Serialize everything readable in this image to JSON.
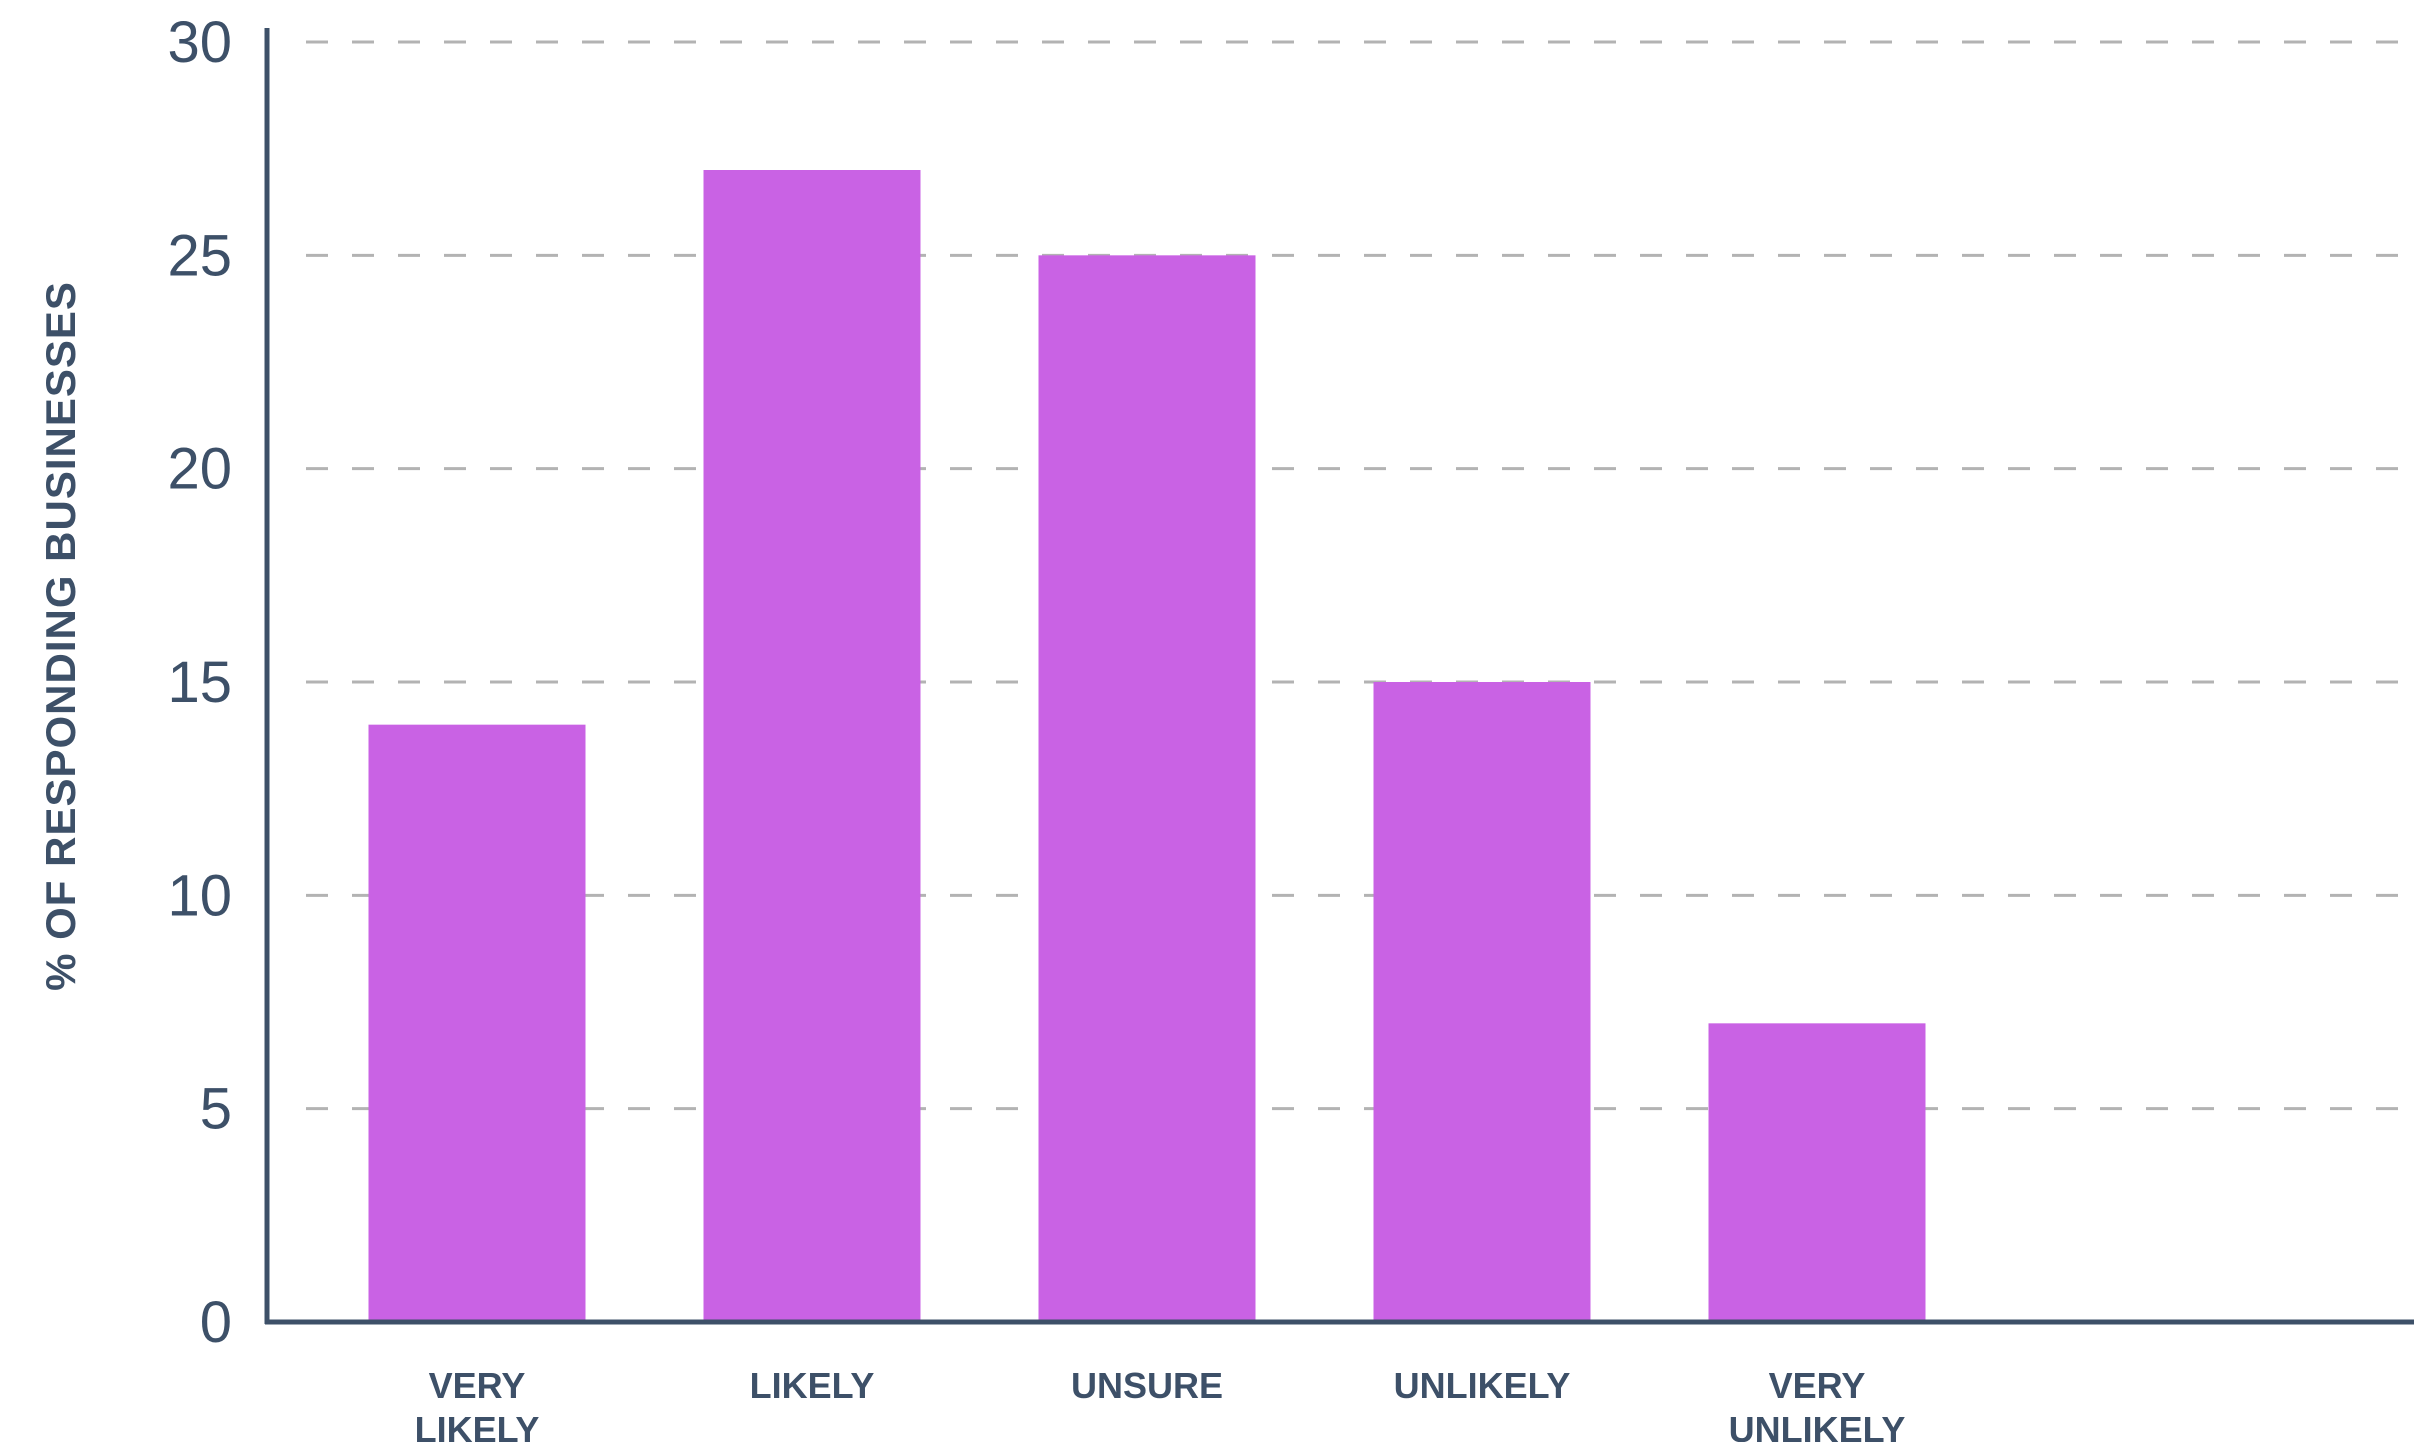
{
  "chart_data": {
    "type": "bar",
    "categories": [
      [
        "VERY",
        "LIKELY"
      ],
      [
        "LIKELY"
      ],
      [
        "UNSURE"
      ],
      [
        "UNLIKELY"
      ],
      [
        "VERY",
        "UNLIKELY"
      ]
    ],
    "values": [
      14,
      27,
      25,
      15,
      7
    ],
    "ylabel": "% OF RESPONDING BUSINESSES",
    "ylim": [
      0,
      30
    ],
    "yticks": [
      0,
      5,
      10,
      15,
      20,
      25,
      30
    ],
    "grid": true,
    "bar_color": "#c962e4",
    "axis_color": "#3d5068",
    "grid_color": "#b3b3b3"
  }
}
